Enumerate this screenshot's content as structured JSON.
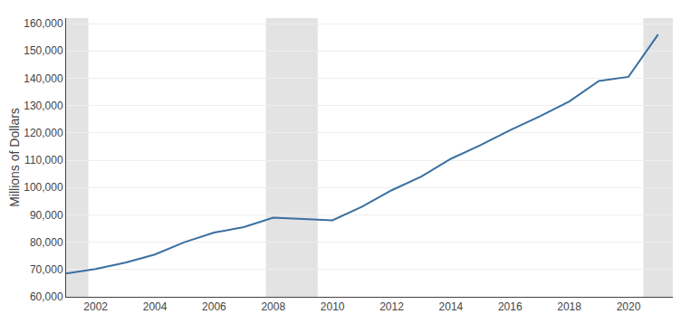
{
  "chart_data": {
    "type": "line",
    "x": [
      2001,
      2002,
      2003,
      2004,
      2005,
      2006,
      2007,
      2008,
      2009,
      2010,
      2011,
      2012,
      2013,
      2014,
      2015,
      2016,
      2017,
      2018,
      2019,
      2020,
      2021
    ],
    "values": [
      68500,
      70200,
      72500,
      75500,
      80000,
      83500,
      85500,
      89000,
      88500,
      88000,
      93000,
      99000,
      104000,
      110500,
      115500,
      121000,
      126000,
      131500,
      139000,
      140500,
      156000
    ],
    "color": "#3a6fa0",
    "y_label": "Millions of Dollars",
    "xlim": [
      2001.0,
      2021.5
    ],
    "ylim": [
      60000,
      162000
    ],
    "xticks": [
      2002,
      2004,
      2006,
      2008,
      2010,
      2012,
      2014,
      2016,
      2018,
      2020
    ],
    "yticks": [
      {
        "value": 60000,
        "label": "60,000"
      },
      {
        "value": 70000,
        "label": "70,000"
      },
      {
        "value": 80000,
        "label": "80,000"
      },
      {
        "value": 90000,
        "label": "90,000"
      },
      {
        "value": 100000,
        "label": "100,000"
      },
      {
        "value": 110000,
        "label": "110,000"
      },
      {
        "value": 120000,
        "label": "120,000"
      },
      {
        "value": 130000,
        "label": "130,000"
      },
      {
        "value": 140000,
        "label": "140,000"
      },
      {
        "value": 150000,
        "label": "150,000"
      },
      {
        "value": 160000,
        "label": "160,000"
      }
    ],
    "shaded_ranges": [
      {
        "start": 2001.0,
        "end": 2001.75,
        "color": "#e3e3e3"
      },
      {
        "start": 2007.75,
        "end": 2009.5,
        "color": "#e3e3e3"
      },
      {
        "start": 2020.5,
        "end": 2021.5,
        "color": "#e3e3e3"
      }
    ],
    "grid": "y"
  }
}
